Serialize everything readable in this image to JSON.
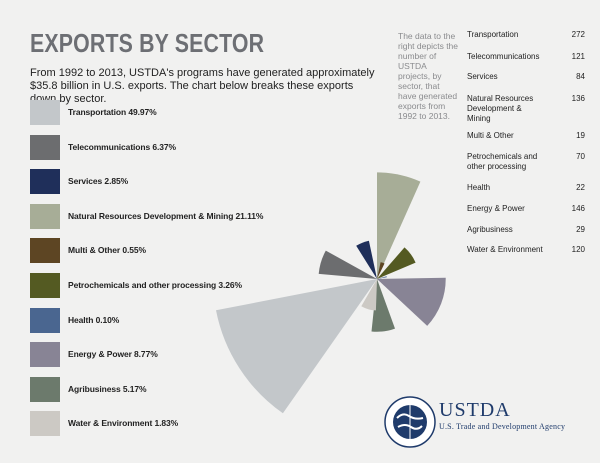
{
  "title": "EXPORTS BY SECTOR",
  "intro": "From 1992 to 2013, USTDA's programs have generated approximately $35.8 billion in U.S. exports. The chart below breaks these exports down by sector.",
  "note": "The data to the right depicts the number of USTDA projects, by sector, that have generated exports from 1992 to 2013.",
  "legend": [
    {
      "label": "Transportation 49.97%",
      "color": "#c3c7ca"
    },
    {
      "label": "Telecommunications 6.37%",
      "color": "#6c6d6f"
    },
    {
      "label": "Services 2.85%",
      "color": "#1f2f5a"
    },
    {
      "label": "Natural Resources Development & Mining 21.11%",
      "color": "#a7ad97"
    },
    {
      "label": "Multi & Other 0.55%",
      "color": "#5d4523"
    },
    {
      "label": "Petrochemicals and other processing 3.26%",
      "color": "#545a22"
    },
    {
      "label": "Health 0.10%",
      "color": "#4a6690"
    },
    {
      "label": "Energy & Power 8.77%",
      "color": "#888495"
    },
    {
      "label": "Agribusiness 5.17%",
      "color": "#6c7a6c"
    },
    {
      "label": "Water & Environment 1.83%",
      "color": "#ccc9c4"
    }
  ],
  "counts": [
    {
      "name": "Transportation",
      "value": "272"
    },
    {
      "name": "Telecommunications",
      "value": "121"
    },
    {
      "name": "Services",
      "value": "84"
    },
    {
      "name": "Natural Resources Development & Mining",
      "value": "136"
    },
    {
      "name": "Multi & Other",
      "value": "19"
    },
    {
      "name": "Petrochemicals and other processing",
      "value": "70"
    },
    {
      "name": "Health",
      "value": "22"
    },
    {
      "name": "Energy & Power",
      "value": "146"
    },
    {
      "name": "Agribusiness",
      "value": "29"
    },
    {
      "name": "Water & Environment",
      "value": "120"
    }
  ],
  "chart_data": {
    "type": "pie",
    "categories": [
      "Transportation",
      "Telecommunications",
      "Services",
      "Natural Resources Development & Mining",
      "Multi & Other",
      "Petrochemicals and other processing",
      "Health",
      "Energy & Power",
      "Agribusiness",
      "Water & Environment"
    ],
    "values": [
      49.97,
      6.37,
      2.85,
      21.11,
      0.55,
      3.26,
      0.1,
      8.77,
      5.17,
      1.83
    ],
    "project_counts": [
      272,
      121,
      84,
      136,
      19,
      70,
      22,
      146,
      29,
      120
    ],
    "colors": [
      "#c3c7ca",
      "#6c6d6f",
      "#1f2f5a",
      "#a7ad97",
      "#5d4523",
      "#545a22",
      "#4a6690",
      "#888495",
      "#6c7a6c",
      "#ccc9c4"
    ],
    "title": ""
  },
  "brand": {
    "name": "USTDA",
    "sub": "U.S. Trade and Development Agency"
  }
}
